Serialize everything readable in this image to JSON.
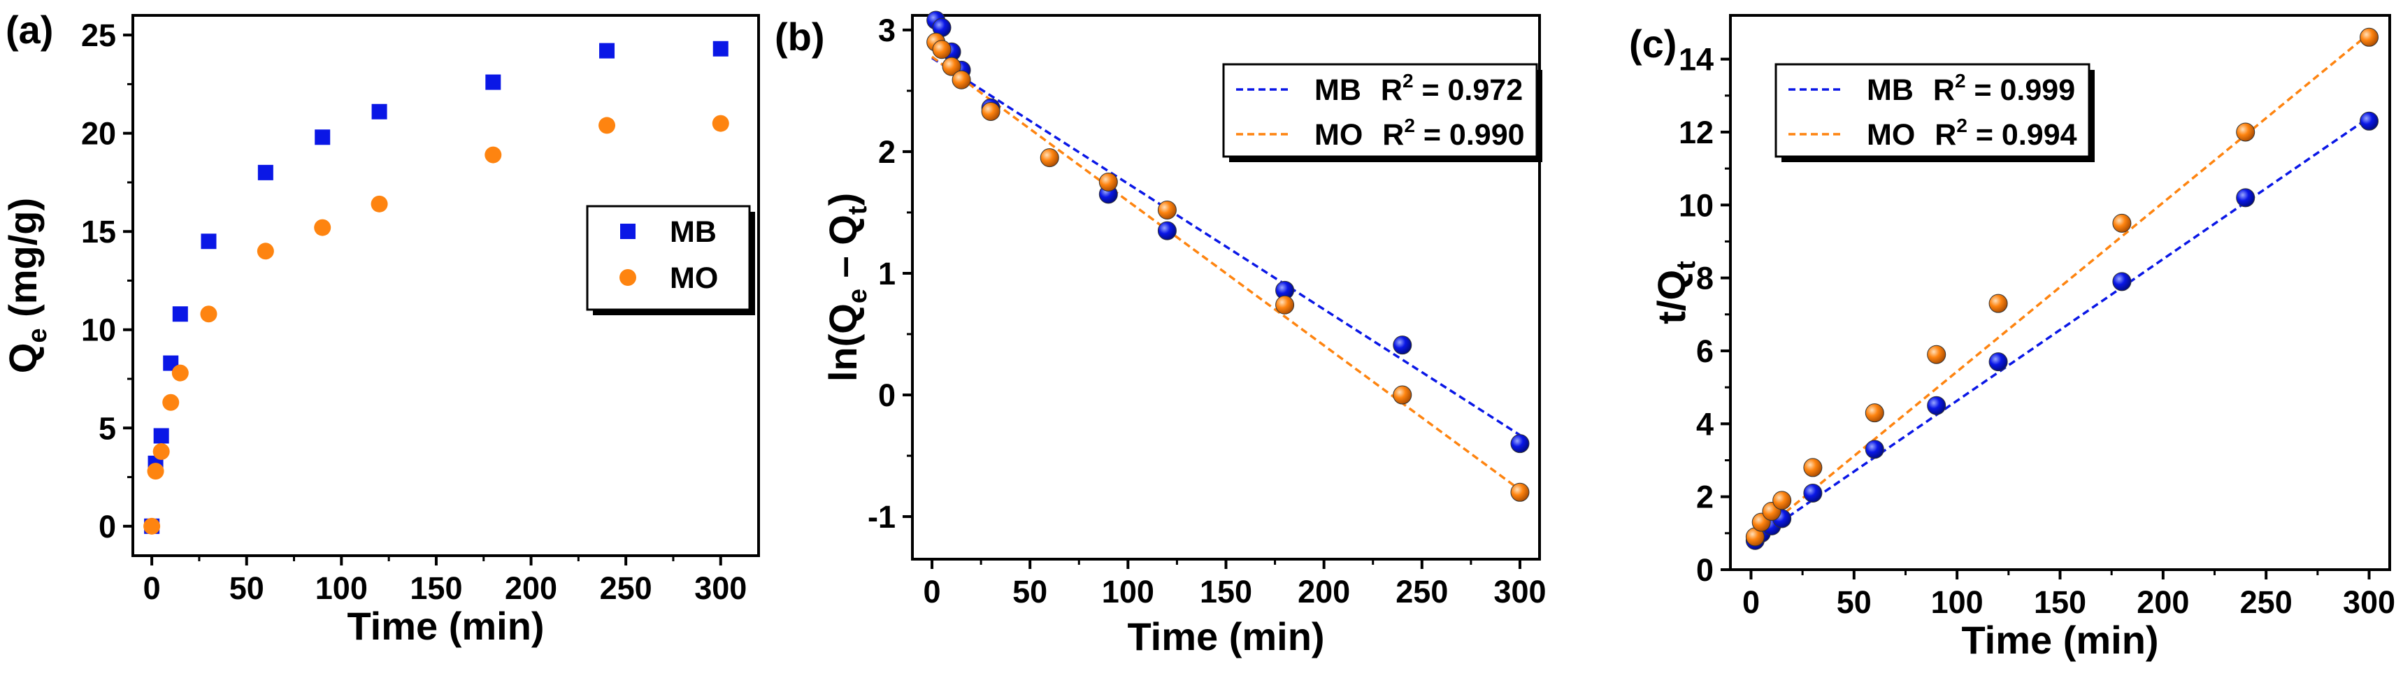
{
  "colors": {
    "mb": "#0a17e6",
    "mo": "#fe8410",
    "axis": "#000000"
  },
  "chart_data": [
    {
      "type": "scatter",
      "panel_label": "(a)",
      "xlabel": "Time (min)",
      "ylabel": {
        "main": "Q",
        "sub": "e",
        "rest": " (mg/g)"
      },
      "xlim": [
        -10,
        320
      ],
      "ylim": [
        -1.5,
        26
      ],
      "xticks": [
        0,
        50,
        100,
        150,
        200,
        250,
        300
      ],
      "yticks": [
        0,
        5,
        10,
        15,
        20,
        25
      ],
      "legend_placement": "right",
      "series": [
        {
          "name": "MB",
          "marker": "square",
          "color": "#0a17e6",
          "x": [
            0,
            2,
            5,
            10,
            15,
            30,
            60,
            90,
            120,
            180,
            240,
            300
          ],
          "y": [
            0,
            3.2,
            4.6,
            8.3,
            10.8,
            14.5,
            18.0,
            19.8,
            21.1,
            22.6,
            24.2,
            24.3
          ]
        },
        {
          "name": "MO",
          "marker": "circle",
          "color": "#fe8410",
          "x": [
            0,
            2,
            5,
            10,
            15,
            30,
            60,
            90,
            120,
            180,
            240,
            300
          ],
          "y": [
            0,
            2.8,
            3.8,
            6.3,
            7.8,
            10.8,
            14.0,
            15.2,
            16.4,
            18.9,
            20.4,
            20.5
          ]
        }
      ]
    },
    {
      "type": "scatter",
      "panel_label": "(b)",
      "xlabel": "Time (min)",
      "ylabel": {
        "main": "ln(Q",
        "sub1": "e",
        "mid": " – Q",
        "sub2": "t",
        "rest": ")"
      },
      "xlim": [
        -10,
        310
      ],
      "ylim": [
        -1.35,
        3.12
      ],
      "xticks": [
        0,
        50,
        100,
        150,
        200,
        250,
        300
      ],
      "yticks": [
        -1,
        0,
        1,
        2,
        3
      ],
      "legend_placement": "top-right",
      "series": [
        {
          "name": "MB",
          "marker": "sphere",
          "color": "#0a17e6",
          "x": [
            2,
            5,
            10,
            15,
            30,
            90,
            120,
            180,
            240,
            300
          ],
          "y": [
            3.08,
            3.02,
            2.82,
            2.67,
            2.36,
            1.65,
            1.35,
            0.86,
            0.41,
            -0.4
          ],
          "fit": {
            "x": [
              0,
              300
            ],
            "y": [
              2.77,
              -0.33
            ],
            "label": "MB",
            "r2": "0.972"
          }
        },
        {
          "name": "MO",
          "marker": "sphere",
          "color": "#fe8410",
          "x": [
            2,
            5,
            10,
            15,
            30,
            60,
            90,
            120,
            180,
            240,
            300
          ],
          "y": [
            2.9,
            2.84,
            2.7,
            2.59,
            2.33,
            1.95,
            1.75,
            1.52,
            0.74,
            0.0,
            -0.8
          ],
          "fit": {
            "x": [
              0,
              300
            ],
            "y": [
              2.78,
              -0.78
            ],
            "label": "MO",
            "r2": "0.990"
          }
        }
      ]
    },
    {
      "type": "scatter",
      "panel_label": "(c)",
      "xlabel": "Time (min)",
      "ylabel": {
        "main": "t/Q",
        "sub": "t"
      },
      "xlim": [
        -10,
        310
      ],
      "ylim": [
        0,
        15.2
      ],
      "xticks": [
        0,
        50,
        100,
        150,
        200,
        250,
        300
      ],
      "yticks": [
        0,
        2,
        4,
        6,
        8,
        10,
        12,
        14
      ],
      "legend_placement": "top-left",
      "series": [
        {
          "name": "MB",
          "marker": "sphere",
          "color": "#0a17e6",
          "x": [
            2,
            5,
            10,
            15,
            30,
            60,
            90,
            120,
            180,
            240,
            300
          ],
          "y": [
            0.8,
            1.0,
            1.2,
            1.4,
            2.1,
            3.3,
            4.5,
            5.7,
            7.9,
            10.2,
            12.3
          ],
          "fit": {
            "x": [
              0,
              300
            ],
            "y": [
              0.75,
              12.4
            ],
            "label": "MB",
            "r2": "0.999"
          }
        },
        {
          "name": "MO",
          "marker": "sphere",
          "color": "#fe8410",
          "x": [
            2,
            5,
            10,
            15,
            30,
            60,
            90,
            120,
            180,
            240,
            300
          ],
          "y": [
            0.9,
            1.3,
            1.6,
            1.9,
            2.8,
            4.3,
            5.9,
            7.3,
            9.5,
            12.0,
            14.6
          ],
          "fit": {
            "x": [
              0,
              300
            ],
            "y": [
              0.8,
              14.7
            ],
            "label": "MO",
            "r2": "0.994"
          }
        }
      ]
    }
  ]
}
